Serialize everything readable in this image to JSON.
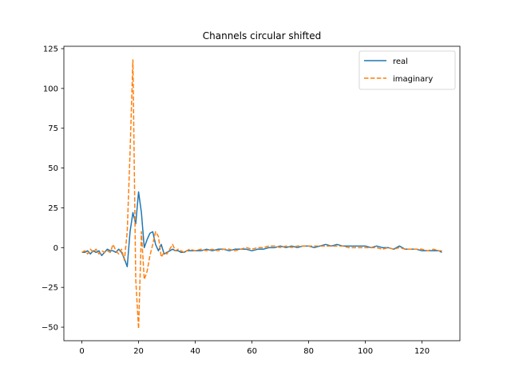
{
  "chart_data": {
    "type": "line",
    "title": "Channels circular shifted",
    "xlabel": "",
    "ylabel": "",
    "xlim": [
      -6.35,
      133.35
    ],
    "ylim": [
      -58.5,
      126.5
    ],
    "xticks": [
      0,
      20,
      40,
      60,
      80,
      100,
      120
    ],
    "yticks": [
      -50,
      -25,
      0,
      25,
      50,
      75,
      100,
      125
    ],
    "xtick_labels": [
      "0",
      "20",
      "40",
      "60",
      "80",
      "100",
      "120"
    ],
    "ytick_labels": [
      "−50",
      "−25",
      "0",
      "25",
      "50",
      "75",
      "100",
      "125"
    ],
    "grid": false,
    "legend_position": "top-right",
    "series": [
      {
        "name": "real",
        "color": "#1f77b4",
        "style": "solid",
        "x": [
          0,
          1,
          2,
          3,
          4,
          5,
          6,
          7,
          8,
          9,
          10,
          11,
          12,
          13,
          14,
          15,
          16,
          17,
          18,
          19,
          20,
          21,
          22,
          23,
          24,
          25,
          26,
          27,
          28,
          29,
          30,
          31,
          32,
          33,
          34,
          35,
          36,
          37,
          38,
          40,
          42,
          44,
          46,
          48,
          50,
          52,
          54,
          56,
          58,
          60,
          62,
          64,
          66,
          68,
          70,
          72,
          74,
          76,
          78,
          80,
          82,
          84,
          86,
          88,
          90,
          92,
          94,
          96,
          98,
          100,
          102,
          104,
          106,
          108,
          110,
          112,
          114,
          116,
          118,
          120,
          122,
          124,
          126,
          127
        ],
        "y": [
          -3,
          -3,
          -2,
          -4,
          -2,
          -3,
          -2,
          -5,
          -3,
          -1,
          -2,
          -2,
          -3,
          -1,
          -3,
          -7,
          -12,
          10,
          22,
          15,
          35,
          22,
          0,
          5,
          9,
          10,
          2,
          -2,
          2,
          -4,
          -3,
          -2,
          -1,
          -2,
          -2,
          -3,
          -3,
          -2,
          -2,
          -2,
          -2,
          -1,
          -2,
          -1,
          -1,
          -2,
          -1,
          -1,
          -1,
          -2,
          -1,
          -1,
          0,
          0,
          1,
          0,
          1,
          0,
          1,
          1,
          0,
          1,
          2,
          1,
          2,
          1,
          1,
          1,
          1,
          1,
          0,
          1,
          0,
          0,
          -1,
          1,
          -1,
          -1,
          -1,
          -2,
          -2,
          -2,
          -2,
          -3
        ]
      },
      {
        "name": "imaginary",
        "color": "#ff7f0e",
        "style": "dashed",
        "x": [
          0,
          1,
          2,
          3,
          4,
          5,
          6,
          7,
          8,
          9,
          10,
          11,
          12,
          13,
          14,
          15,
          16,
          17,
          18,
          19,
          20,
          21,
          22,
          23,
          24,
          25,
          26,
          27,
          28,
          29,
          30,
          31,
          32,
          33,
          34,
          35,
          36,
          37,
          38,
          40,
          42,
          44,
          46,
          48,
          50,
          52,
          54,
          56,
          58,
          60,
          62,
          64,
          66,
          68,
          70,
          72,
          74,
          76,
          78,
          80,
          82,
          84,
          86,
          88,
          90,
          92,
          94,
          96,
          98,
          100,
          102,
          104,
          106,
          108,
          110,
          112,
          114,
          116,
          118,
          120,
          122,
          124,
          126,
          127
        ],
        "y": [
          -3,
          -2,
          -4,
          -1,
          -3,
          -1,
          -4,
          -2,
          -3,
          -2,
          -3,
          2,
          -2,
          -4,
          -1,
          -8,
          10,
          60,
          118,
          -20,
          -51,
          10,
          -20,
          -15,
          -5,
          2,
          10,
          7,
          -6,
          -3,
          -4,
          -1,
          2,
          -2,
          -1,
          -2,
          -3,
          -2,
          -1,
          -2,
          -1,
          -2,
          -1,
          -2,
          -1,
          -1,
          -2,
          -1,
          0,
          -1,
          0,
          0,
          1,
          1,
          0,
          1,
          0,
          1,
          1,
          1,
          1,
          1,
          1,
          1,
          1,
          1,
          0,
          0,
          0,
          0,
          0,
          0,
          -1,
          0,
          -1,
          0,
          -1,
          -1,
          -1,
          -1,
          -2,
          -1,
          -2,
          -2
        ]
      }
    ]
  }
}
